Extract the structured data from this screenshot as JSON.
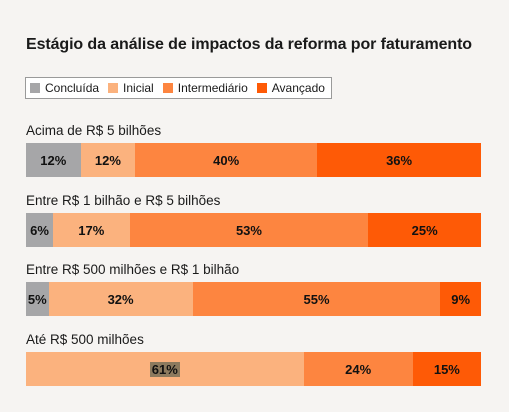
{
  "chart_data": {
    "type": "bar",
    "orientation": "horizontal",
    "stacked": true,
    "normalized": true,
    "title": "Estágio da análise de impactos da reforma por faturamento",
    "legend_position": "top-left",
    "grid": false,
    "xlim": [
      0,
      100
    ],
    "series": [
      {
        "name": "Concluída",
        "color": "#a6a6a8",
        "values": [
          12,
          6,
          5,
          0
        ]
      },
      {
        "name": "Inicial",
        "color": "#fbb27e",
        "values": [
          12,
          17,
          32,
          61
        ]
      },
      {
        "name": "Intermediário",
        "color": "#fd8540",
        "values": [
          40,
          53,
          55,
          24
        ]
      },
      {
        "name": "Avançado",
        "color": "#fe5a06",
        "values": [
          36,
          25,
          9,
          15
        ]
      }
    ],
    "categories": [
      "Acima de R$ 5 bilhões",
      "Entre R$ 1 bilhão e R$ 5 bilhões",
      "Entre R$ 500 milhões e R$ 1 bilhão",
      "Até R$ 500 milhões"
    ],
    "data_labels": [
      [
        "12%",
        "12%",
        "40%",
        "36%"
      ],
      [
        "6%",
        "17%",
        "53%",
        "25%"
      ],
      [
        "5%",
        "32%",
        "55%",
        "9%"
      ],
      [
        "",
        "61%",
        "24%",
        "15%"
      ]
    ]
  }
}
